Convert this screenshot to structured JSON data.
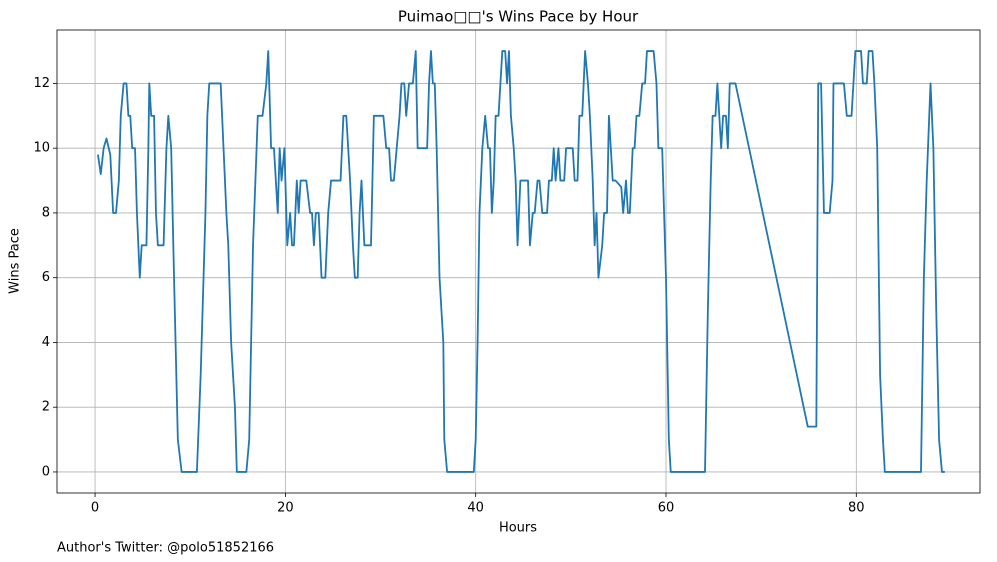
{
  "chart_data": {
    "type": "line",
    "title": "Puimao□□'s Wins Pace by Hour",
    "xlabel": "Hours",
    "ylabel": "Wins Pace",
    "footnote": "Author's Twitter: @polo51852166",
    "color": "#1f77b4",
    "grid": true,
    "xlim": [
      -4,
      93
    ],
    "ylim": [
      -0.65,
      13.65
    ],
    "xticks": [
      0,
      20,
      40,
      60,
      80
    ],
    "yticks": [
      0,
      2,
      4,
      6,
      8,
      10,
      12
    ],
    "x": [
      0.3,
      0.6,
      0.9,
      1.2,
      1.6,
      1.9,
      2.2,
      2.5,
      2.7,
      3.0,
      3.3,
      3.5,
      3.7,
      3.9,
      4.2,
      4.4,
      4.7,
      4.9,
      5.4,
      5.6,
      5.7,
      5.9,
      6.2,
      6.4,
      6.6,
      7.2,
      7.5,
      7.7,
      8.0,
      8.3,
      8.7,
      9.1,
      10.7,
      11.1,
      11.6,
      11.8,
      12.0,
      13.2,
      13.8,
      14.0,
      14.3,
      14.7,
      14.9,
      15.9,
      16.2,
      16.6,
      17.1,
      17.6,
      18.0,
      18.2,
      18.5,
      18.8,
      19.2,
      19.4,
      19.6,
      19.9,
      20.2,
      20.5,
      20.7,
      20.9,
      21.2,
      21.4,
      21.6,
      22.2,
      22.6,
      22.8,
      23.0,
      23.2,
      23.5,
      23.8,
      24.2,
      24.5,
      24.8,
      25.8,
      26.1,
      26.4,
      26.8,
      27.1,
      27.3,
      27.6,
      27.8,
      28.0,
      28.3,
      29.0,
      29.3,
      30.3,
      30.6,
      30.9,
      31.1,
      31.4,
      31.7,
      32.0,
      32.2,
      32.5,
      32.7,
      33.0,
      33.4,
      33.7,
      33.9,
      34.9,
      35.1,
      35.3,
      35.5,
      35.7,
      35.9,
      36.2,
      36.6,
      36.7,
      37.0,
      39.8,
      40.0,
      40.2,
      40.4,
      40.7,
      41.0,
      41.3,
      41.5,
      41.7,
      41.9,
      42.1,
      42.4,
      42.8,
      43.1,
      43.3,
      43.5,
      43.7,
      44.0,
      44.2,
      44.4,
      44.7,
      45.5,
      45.7,
      46.0,
      46.2,
      46.5,
      46.7,
      47.0,
      47.5,
      47.7,
      48.0,
      48.2,
      48.4,
      48.7,
      48.9,
      49.3,
      49.5,
      50.2,
      50.4,
      50.7,
      50.9,
      51.2,
      51.5,
      51.8,
      52.0,
      52.3,
      52.5,
      52.7,
      52.9,
      53.3,
      53.5,
      53.8,
      54.0,
      54.2,
      54.4,
      54.7,
      55.3,
      55.5,
      55.8,
      56.0,
      56.2,
      56.5,
      56.7,
      56.9,
      57.2,
      57.5,
      57.8,
      58.0,
      58.7,
      59.0,
      59.2,
      59.6,
      60.0,
      60.3,
      60.5,
      64.1,
      64.4,
      64.7,
      64.9,
      65.2,
      65.4,
      65.8,
      66.0,
      66.3,
      66.5,
      66.7,
      67.3,
      74.9,
      75.8,
      76.0,
      76.3,
      76.6,
      77.2,
      77.5,
      77.6,
      78.7,
      79.0,
      79.5,
      79.7,
      79.9,
      80.5,
      80.7,
      81.1,
      81.3,
      81.7,
      81.9,
      82.2,
      82.5,
      82.8,
      83.0,
      86.8,
      87.1,
      87.4,
      87.8,
      88.1,
      88.4,
      88.7,
      89.0,
      89.3
    ],
    "values": [
      9.8,
      9.2,
      10,
      10.3,
      9.8,
      8,
      8,
      9,
      11,
      12,
      12,
      11,
      11,
      10,
      10,
      8,
      6,
      7,
      7,
      10,
      12,
      11,
      11,
      8,
      7,
      7,
      10,
      11,
      10,
      6,
      1,
      0,
      0,
      3,
      8,
      11,
      12,
      12,
      8,
      7,
      4,
      2,
      0,
      0,
      1,
      7,
      11,
      11,
      12,
      13,
      10,
      10,
      8,
      10,
      9,
      10,
      7,
      8,
      7,
      7,
      9,
      8,
      9,
      9,
      8,
      8,
      7,
      8,
      8,
      6,
      6,
      8,
      9,
      9,
      11,
      11,
      9,
      7,
      6,
      6,
      8,
      9,
      7,
      7,
      11,
      11,
      10,
      10,
      9,
      9,
      10,
      11,
      12,
      12,
      11,
      12,
      12,
      13,
      10,
      10,
      12,
      13,
      12,
      12,
      10,
      6,
      4,
      1,
      0,
      0,
      1,
      4,
      8,
      10,
      11,
      10,
      10,
      8,
      9,
      11,
      11,
      13,
      13,
      12,
      13,
      11,
      10,
      9,
      7,
      9,
      9,
      7,
      8,
      8,
      9,
      9,
      8,
      8,
      9,
      9,
      10,
      9,
      10,
      9,
      9,
      10,
      10,
      9,
      9,
      11,
      11,
      13,
      12,
      11,
      9,
      7,
      8,
      6,
      7,
      8,
      8,
      11,
      10,
      9,
      9,
      8.8,
      8,
      9,
      8,
      8,
      10,
      10,
      11,
      11,
      12,
      12,
      13,
      13,
      12,
      10,
      10,
      6,
      1,
      0,
      0,
      5,
      9,
      11,
      11,
      12,
      10,
      11,
      11,
      10,
      12,
      12,
      1.4,
      1.4,
      12,
      12,
      8,
      8,
      9,
      12,
      12,
      11,
      11,
      12,
      13,
      13,
      12,
      12,
      13,
      13,
      12,
      10,
      3,
      1,
      0,
      0,
      6,
      9,
      12,
      10,
      5,
      1,
      0,
      0
    ]
  }
}
